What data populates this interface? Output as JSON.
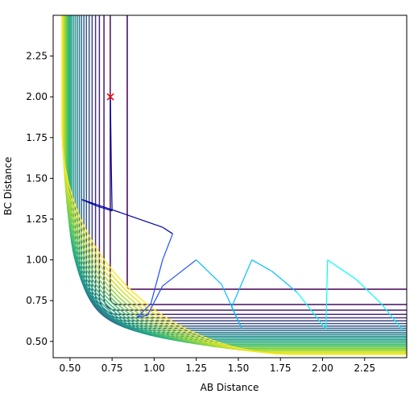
{
  "chart_data": {
    "type": "contour",
    "title": "",
    "xlabel": "AB Distance",
    "ylabel": "BC Distance",
    "xlim": [
      0.4,
      2.5
    ],
    "ylim": [
      0.4,
      2.5
    ],
    "xticks": [
      "0.50",
      "0.75",
      "1.00",
      "1.25",
      "1.50",
      "1.75",
      "2.00",
      "2.25"
    ],
    "yticks": [
      "0.50",
      "0.75",
      "1.00",
      "1.25",
      "1.50",
      "1.75",
      "2.00",
      "2.25"
    ],
    "contour_levels": 26,
    "colormap": "viridis",
    "start_marker": {
      "x": 0.74,
      "y": 2.0,
      "symbol": "x",
      "color": "#ff0000"
    },
    "trajectory": {
      "color_gradient": [
        "#0000aa",
        "#1f4fff",
        "#00bfff",
        "#00ffff"
      ],
      "points": [
        [
          0.74,
          2.0
        ],
        [
          0.745,
          1.6
        ],
        [
          0.75,
          1.3
        ],
        [
          0.66,
          1.33
        ],
        [
          0.57,
          1.37
        ],
        [
          0.8,
          1.29
        ],
        [
          1.05,
          1.2
        ],
        [
          1.11,
          1.16
        ],
        [
          1.05,
          1.0
        ],
        [
          0.98,
          0.73
        ],
        [
          0.9,
          0.65
        ],
        [
          0.96,
          0.66
        ],
        [
          1.05,
          0.84
        ],
        [
          1.25,
          1.0
        ],
        [
          1.4,
          0.85
        ],
        [
          1.52,
          0.58
        ],
        [
          1.46,
          0.71
        ],
        [
          1.58,
          1.0
        ],
        [
          1.7,
          0.93
        ],
        [
          1.85,
          0.8
        ],
        [
          2.0,
          0.6
        ],
        [
          2.02,
          0.58
        ],
        [
          2.03,
          1.0
        ],
        [
          2.2,
          0.88
        ],
        [
          2.35,
          0.73
        ],
        [
          2.45,
          0.6
        ],
        [
          2.48,
          0.57
        ]
      ]
    },
    "grid": false
  }
}
